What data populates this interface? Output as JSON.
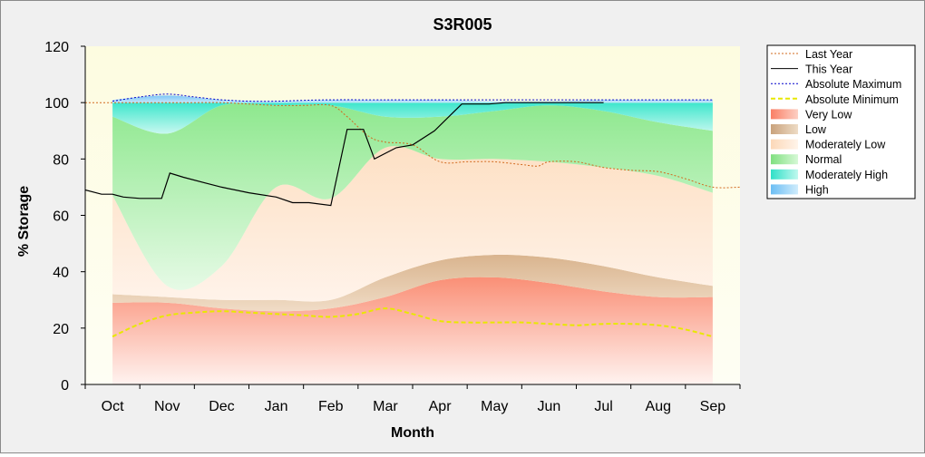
{
  "chart_data": {
    "type": "area",
    "title": "S3R005",
    "xlabel": "Month",
    "ylabel": "% Storage",
    "ylim": [
      0,
      120
    ],
    "yticks": [
      0,
      20,
      40,
      60,
      80,
      100,
      120
    ],
    "categories": [
      "Oct",
      "Nov",
      "Dec",
      "Jan",
      "Feb",
      "Mar",
      "Apr",
      "May",
      "Jun",
      "Jul",
      "Aug",
      "Sep"
    ],
    "x_unit": "month index (0 = Oct 1, 12 = end of Sep)",
    "xlim": [
      -0.5,
      11.5
    ],
    "legend_position": "right",
    "legend": [
      {
        "label": "Last Year",
        "style": "dotted-line",
        "color": "#d2691e"
      },
      {
        "label": "This Year",
        "style": "solid-line",
        "color": "#000000"
      },
      {
        "label": "Absolute Maximum",
        "style": "dotted-line",
        "color": "#0000cc"
      },
      {
        "label": "Absolute Minimum",
        "style": "dashed-line",
        "color": "#e8e800"
      },
      {
        "label": "Very Low",
        "style": "fill",
        "color": "#fa8c78"
      },
      {
        "label": "Low",
        "style": "fill",
        "color": "#d2b48c"
      },
      {
        "label": "Moderately Low",
        "style": "fill",
        "color": "#ffe4c4"
      },
      {
        "label": "Normal",
        "style": "fill",
        "color": "#90ee90"
      },
      {
        "label": "Moderately High",
        "style": "fill",
        "color": "#40e0d0"
      },
      {
        "label": "High",
        "style": "fill",
        "color": "#87cefa"
      }
    ],
    "bands": {
      "x": [
        0,
        1,
        2,
        3,
        4,
        5,
        6,
        7,
        8,
        9,
        10,
        11
      ],
      "very_low_top": [
        29,
        29,
        27,
        26,
        27,
        31,
        37,
        38,
        36,
        33,
        31,
        31
      ],
      "low_top": [
        32,
        31,
        30,
        30,
        30,
        38,
        44,
        46,
        45,
        42,
        38,
        35
      ],
      "moderately_low_top": [
        67,
        35,
        42,
        70,
        66,
        84,
        80,
        80,
        79,
        77,
        74,
        68
      ],
      "normal_top": [
        95,
        89,
        99,
        99,
        99,
        95,
        95,
        97,
        99,
        97,
        93,
        90
      ],
      "moderately_high_top": [
        100,
        100,
        100,
        100,
        100,
        100,
        100,
        100,
        100,
        100,
        100,
        100
      ],
      "high_top": [
        101,
        102.5,
        101,
        100.5,
        101,
        101,
        101,
        100.5,
        100.5,
        101,
        101,
        101
      ]
    },
    "series": [
      {
        "name": "Last Year",
        "x": [
          -0.5,
          0,
          0.5,
          1,
          1.5,
          2,
          2.5,
          3,
          3.5,
          4,
          4.3,
          4.7,
          5,
          5.5,
          6,
          6.5,
          7,
          7.5,
          7.8,
          8,
          8.5,
          9,
          9.5,
          10,
          10.5,
          11,
          11.5
        ],
        "y": [
          100,
          100,
          100,
          100,
          100,
          100,
          99.5,
          99,
          99,
          99,
          95,
          88,
          86,
          85,
          79,
          79,
          79,
          78,
          77.5,
          79,
          79,
          77,
          76,
          75.5,
          73,
          70,
          70
        ]
      },
      {
        "name": "This Year",
        "x": [
          -0.5,
          -0.2,
          0,
          0.2,
          0.5,
          0.9,
          1.05,
          1.3,
          1.7,
          2,
          2.5,
          3,
          3.3,
          3.6,
          4,
          4.3,
          4.6,
          4.8,
          5.2,
          5.5,
          5.9,
          6.4,
          6.9,
          7.2,
          8,
          8.5,
          9
        ],
        "y": [
          69,
          67.5,
          67.5,
          66.5,
          66,
          66,
          75,
          73.5,
          71.5,
          70,
          68,
          66.5,
          64.5,
          64.5,
          63.5,
          90.5,
          90.5,
          80,
          84,
          85,
          90,
          99.5,
          99.5,
          100,
          100,
          100,
          100
        ]
      },
      {
        "name": "Absolute Maximum",
        "x": [
          0,
          0.5,
          1,
          1.5,
          2,
          2.5,
          3,
          3.5,
          4,
          5,
          6,
          7,
          8,
          9,
          10,
          11
        ],
        "y": [
          100.5,
          102,
          103,
          102,
          101,
          100.5,
          100.5,
          100.8,
          101,
          101,
          101,
          101,
          101,
          101,
          101,
          101
        ]
      },
      {
        "name": "Absolute Minimum",
        "x": [
          0,
          0.5,
          1,
          1.5,
          2,
          2.5,
          3,
          3.5,
          4,
          4.5,
          5,
          5.5,
          6,
          6.5,
          7,
          7.5,
          8,
          8.5,
          9,
          9.5,
          10,
          10.5,
          11
        ],
        "y": [
          17,
          21.5,
          24.5,
          25.5,
          26,
          25.5,
          25,
          24.5,
          24,
          25,
          27,
          25,
          22.5,
          22,
          22,
          22,
          21.5,
          21,
          21.5,
          21.5,
          21,
          19.5,
          17
        ]
      }
    ]
  }
}
